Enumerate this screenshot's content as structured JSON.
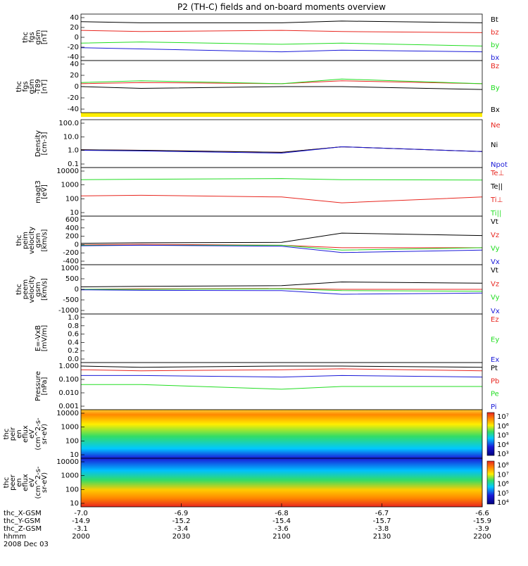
{
  "title": "P2 (TH-C) fields and on-board moments overview",
  "footer": {
    "rows": [
      {
        "label": "thc_X-GSM",
        "values": [
          "-7.0",
          "-6.9",
          "-6.8",
          "-6.7",
          "-6.6"
        ]
      },
      {
        "label": "thc_Y-GSM",
        "values": [
          "-14.9",
          "-15.2",
          "-15.4",
          "-15.7",
          "-15.9"
        ]
      },
      {
        "label": "thc_Z-GSM",
        "values": [
          "-3.1",
          "-3.4",
          "-3.6",
          "-3.8",
          "-3.9"
        ]
      },
      {
        "label": "hhmm",
        "values": [
          "2000",
          "2030",
          "2100",
          "2130",
          "2200"
        ]
      }
    ],
    "date": "2008 Dec 03"
  },
  "colors": {
    "black": "#000000",
    "red": "#e8261f",
    "green": "#22dd22",
    "blue": "#1a1ad8",
    "yellow": "#ffee00"
  },
  "chart_data": [
    {
      "type": "line",
      "ylabel": [
        "thc",
        "fgs",
        "gsm",
        "[nT]"
      ],
      "ylim": [
        -40,
        40
      ],
      "yticks": [
        "40",
        "20",
        "0",
        "-20",
        "-40"
      ],
      "legend": [
        {
          "label": "Bt",
          "color": "#000000"
        },
        {
          "label": "bz",
          "color": "#e8261f"
        },
        {
          "label": "by",
          "color": "#22dd22"
        },
        {
          "label": "bx",
          "color": "#1a1ad8"
        }
      ],
      "x": [
        2000,
        2030,
        2100,
        2130,
        2200
      ],
      "series": [
        {
          "name": "Bt",
          "values": [
            27,
            25,
            25,
            28,
            25
          ]
        },
        {
          "name": "bz",
          "values": [
            12,
            10,
            12,
            10,
            8
          ]
        },
        {
          "name": "by",
          "values": [
            -10,
            -8,
            -12,
            -10,
            -15
          ]
        },
        {
          "name": "bx",
          "values": [
            -18,
            -20,
            -25,
            -22,
            -25
          ]
        }
      ]
    },
    {
      "type": "line",
      "ylabel": [
        "thc",
        "fgs",
        "gsm",
        "-T89",
        "[nT]"
      ],
      "ylim": [
        -50,
        40
      ],
      "yticks": [
        "40",
        "20",
        "0",
        "-20",
        "-40"
      ],
      "legend": [
        {
          "label": "Bz",
          "color": "#e8261f"
        },
        {
          "label": "By",
          "color": "#22dd22"
        },
        {
          "label": "Bx",
          "color": "#000000"
        }
      ],
      "x": [
        2000,
        2030,
        2100,
        2130,
        2200
      ],
      "series": [
        {
          "name": "Bz",
          "values": [
            0,
            2,
            0,
            5,
            0
          ]
        },
        {
          "name": "By",
          "values": [
            2,
            5,
            0,
            8,
            0
          ]
        },
        {
          "name": "Bx",
          "values": [
            -5,
            -8,
            -5,
            -5,
            -10
          ]
        }
      ]
    },
    {
      "type": "line",
      "ylabel": [
        "Density",
        "[cm-3]"
      ],
      "ylim": [
        0.1,
        100
      ],
      "scale": "log",
      "yticks": [
        "100.0",
        "10.0",
        "1.0",
        "0.1"
      ],
      "legend": [
        {
          "label": "Ne",
          "color": "#e8261f"
        },
        {
          "label": "Ni",
          "color": "#000000"
        },
        {
          "label": "Npot",
          "color": "#1a1ad8"
        }
      ],
      "x": [
        2000,
        2030,
        2100,
        2130,
        2200
      ],
      "series": [
        {
          "name": "Ne",
          "values": [
            1.3,
            1.2,
            0.9,
            2,
            1
          ]
        },
        {
          "name": "Ni",
          "values": [
            1.3,
            1.2,
            0.9,
            2,
            1
          ]
        },
        {
          "name": "Npot",
          "values": [
            1.2,
            1.1,
            0.8,
            2,
            1
          ]
        }
      ]
    },
    {
      "type": "line",
      "ylabel": [
        "magt3",
        "[eV]"
      ],
      "ylim": [
        5,
        10000
      ],
      "scale": "log",
      "yticks": [
        "10000",
        "1000",
        "100",
        "10"
      ],
      "legend": [
        {
          "label": "Te⊥",
          "color": "#e8261f"
        },
        {
          "label": "Te||",
          "color": "#000000"
        },
        {
          "label": "Ti⊥",
          "color": "#e8261f"
        },
        {
          "label": "Ti||",
          "color": "#22dd22"
        }
      ],
      "x": [
        2000,
        2030,
        2100,
        2130,
        2200
      ],
      "series": [
        {
          "name": "Ti",
          "values": [
            1500,
            1600,
            1800,
            1500,
            1400
          ]
        },
        {
          "name": "Te",
          "values": [
            120,
            130,
            100,
            40,
            100
          ]
        }
      ]
    },
    {
      "type": "line",
      "ylabel": [
        "thc",
        "peim",
        "velocity",
        "gsm",
        "[km/s]"
      ],
      "ylim": [
        -400,
        600
      ],
      "yticks": [
        "600",
        "400",
        "200",
        "0",
        "-200",
        "-400"
      ],
      "legend": [
        {
          "label": "Vt",
          "color": "#000000"
        },
        {
          "label": "Vz",
          "color": "#e8261f"
        },
        {
          "label": "Vy",
          "color": "#22dd22"
        },
        {
          "label": "Vx",
          "color": "#1a1ad8"
        }
      ],
      "x": [
        2000,
        2030,
        2100,
        2130,
        2200
      ],
      "series": [
        {
          "name": "Vt",
          "values": [
            40,
            50,
            60,
            250,
            200
          ]
        },
        {
          "name": "Vz",
          "values": [
            10,
            20,
            0,
            -50,
            -50
          ]
        },
        {
          "name": "Vy",
          "values": [
            0,
            0,
            0,
            -100,
            -50
          ]
        },
        {
          "name": "Vx",
          "values": [
            -10,
            0,
            -20,
            -150,
            -100
          ]
        }
      ]
    },
    {
      "type": "line",
      "ylabel": [
        "thc",
        "peem",
        "velocity",
        "gsm",
        "[km/s]"
      ],
      "ylim": [
        -1000,
        1000
      ],
      "yticks": [
        "1000",
        "500",
        "0",
        "-500",
        "-1000"
      ],
      "legend": [
        {
          "label": "Vt",
          "color": "#000000"
        },
        {
          "label": "Vz",
          "color": "#e8261f"
        },
        {
          "label": "Vy",
          "color": "#22dd22"
        },
        {
          "label": "Vx",
          "color": "#1a1ad8"
        }
      ],
      "x": [
        2000,
        2030,
        2100,
        2130,
        2200
      ],
      "series": [
        {
          "name": "Vt",
          "values": [
            100,
            120,
            150,
            300,
            250
          ]
        },
        {
          "name": "Vz",
          "values": [
            0,
            20,
            30,
            0,
            0
          ]
        },
        {
          "name": "Vy",
          "values": [
            0,
            0,
            20,
            -50,
            -80
          ]
        },
        {
          "name": "Vx",
          "values": [
            -20,
            -40,
            -50,
            -200,
            -150
          ]
        }
      ]
    },
    {
      "type": "line",
      "ylabel": [
        "E=-VxB",
        "[mV/m]"
      ],
      "ylim": [
        0,
        1
      ],
      "yticks": [
        "1.0",
        "0.8",
        "0.6",
        "0.4",
        "0.2",
        "0.0"
      ],
      "legend": [
        {
          "label": "Ez",
          "color": "#e8261f"
        },
        {
          "label": "Ey",
          "color": "#22dd22"
        },
        {
          "label": "Ex",
          "color": "#1a1ad8"
        }
      ],
      "series": []
    },
    {
      "type": "line",
      "ylabel": [
        "Pressure",
        "[nPa]"
      ],
      "ylim": [
        0.001,
        1
      ],
      "scale": "log",
      "yticks": [
        "1.000",
        "0.100",
        "0.010",
        "0.001"
      ],
      "legend": [
        {
          "label": "Pt",
          "color": "#000000"
        },
        {
          "label": "Pb",
          "color": "#e8261f"
        },
        {
          "label": "Pe",
          "color": "#22dd22"
        },
        {
          "label": "Pi",
          "color": "#1a1ad8"
        }
      ],
      "x": [
        2000,
        2030,
        2100,
        2130,
        2200
      ],
      "series": [
        {
          "name": "Pt",
          "values": [
            0.6,
            0.5,
            0.6,
            0.6,
            0.5
          ]
        },
        {
          "name": "Pb",
          "values": [
            0.35,
            0.3,
            0.35,
            0.4,
            0.3
          ]
        },
        {
          "name": "Pe",
          "values": [
            0.04,
            0.04,
            0.02,
            0.03,
            0.03
          ]
        },
        {
          "name": "Pi",
          "values": [
            0.15,
            0.15,
            0.12,
            0.15,
            0.12
          ]
        }
      ]
    },
    {
      "type": "heatmap",
      "ylabel": [
        "thc",
        "peir",
        "en",
        "eflux",
        "eV",
        "(cm^2-s-",
        "sr-eV)"
      ],
      "ylim": [
        10,
        20000
      ],
      "scale": "log",
      "yticks": [
        "10000",
        "1000",
        "100",
        "10"
      ],
      "colorbar": {
        "ticks": [
          "10⁷",
          "10⁶",
          "10⁵",
          "10⁴",
          "10³"
        ],
        "range": [
          1000,
          10000000
        ]
      }
    },
    {
      "type": "heatmap",
      "ylabel": [
        "thc",
        "peer",
        "en",
        "eflux",
        "eV",
        "(cm^2-s-",
        "sr-eV)"
      ],
      "ylim": [
        10,
        20000
      ],
      "scale": "log",
      "yticks": [
        "10000",
        "1000",
        "100",
        "10"
      ],
      "colorbar": {
        "ticks": [
          "10⁸",
          "10⁷",
          "10⁶",
          "10⁵",
          "10⁴"
        ],
        "range": [
          10000,
          100000000
        ]
      }
    }
  ]
}
